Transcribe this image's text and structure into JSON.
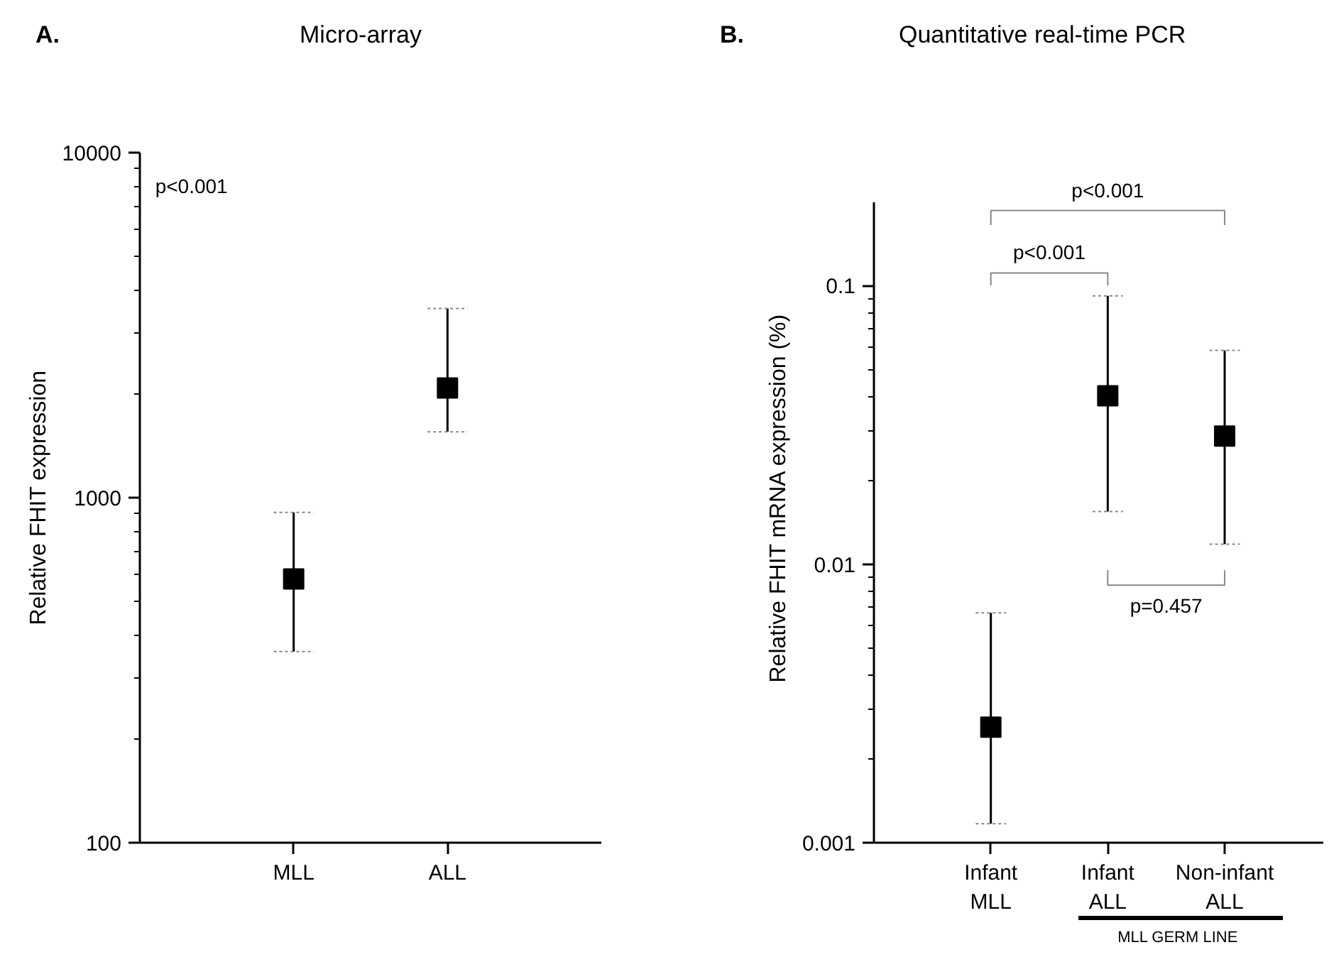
{
  "chart_data": [
    {
      "type": "scatter",
      "title": "Micro-array",
      "ylabel": "Relative FHIT expression",
      "categories": [
        "MLL",
        "ALL"
      ],
      "series": [
        {
          "color": "#000000",
          "values": [
            581,
            2080
          ],
          "errors": [
            [
              358,
              906
            ],
            [
              1552,
              3535
            ]
          ]
        }
      ],
      "ylim": [
        100,
        10000
      ],
      "yticks": [
        100,
        1000,
        10000
      ],
      "log": true,
      "grid": false,
      "marker": "square",
      "annotations": [
        "A.",
        "p<0.001"
      ]
    },
    {
      "type": "scatter",
      "title": "Quantitative real-time PCR",
      "ylabel": "Relative FHIT mRNA expression (%)",
      "categories": [
        "Infant\nMLL",
        "Infant\nALL",
        "Non-infant\nALL"
      ],
      "series": [
        {
          "color": "#000000",
          "values": [
            0.0026,
            0.0402,
            0.0288
          ],
          "errors": [
            [
              0.00117,
              0.00668
            ],
            [
              0.01545,
              0.0918
            ],
            [
              0.0118,
              0.0585
            ]
          ]
        }
      ],
      "ylim": [
        0.001,
        0.2
      ],
      "yticks": [
        0.001,
        0.01,
        0.1
      ],
      "log": true,
      "grid": false,
      "marker": "square",
      "annotations": [
        "B.",
        "p<0.001",
        "p<0.001",
        "p=0.457",
        "MLL GERM LINE"
      ]
    }
  ]
}
